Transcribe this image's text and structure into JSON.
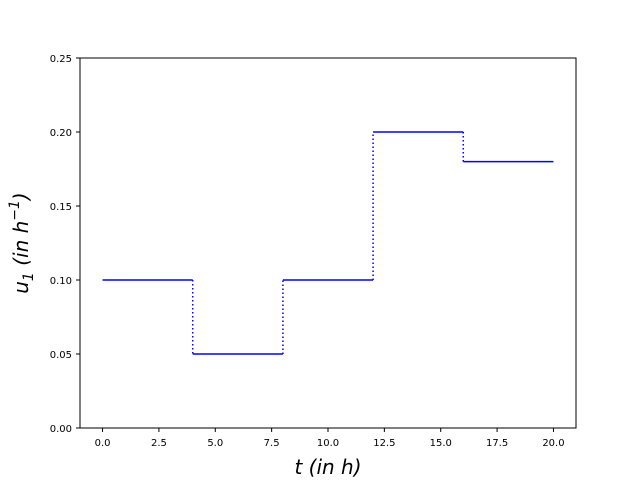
{
  "chart_data": {
    "type": "line",
    "style": "step",
    "xlabel": "t (in h)",
    "ylabel": {
      "base": "u",
      "subscript": "1",
      "text": " (in h",
      "superscript": "−1",
      "close": ")"
    },
    "xlim": [
      -1.0,
      21.0
    ],
    "ylim": [
      0.0,
      0.25
    ],
    "xticks": [
      0.0,
      2.5,
      5.0,
      7.5,
      10.0,
      12.5,
      15.0,
      17.5,
      20.0
    ],
    "xtick_labels": [
      "0.0",
      "2.5",
      "5.0",
      "7.5",
      "10.0",
      "12.5",
      "15.0",
      "17.5",
      "20.0"
    ],
    "yticks": [
      0.0,
      0.05,
      0.1,
      0.15,
      0.2,
      0.25
    ],
    "ytick_labels": [
      "0.00",
      "0.05",
      "0.10",
      "0.15",
      "0.20",
      "0.25"
    ],
    "grid": false,
    "series": [
      {
        "color": "#0000ff",
        "segments": [
          {
            "x_start": 0,
            "x_end": 4,
            "y": 0.1
          },
          {
            "x_start": 4,
            "x_end": 8,
            "y": 0.05
          },
          {
            "x_start": 8,
            "x_end": 12,
            "y": 0.1
          },
          {
            "x_start": 12,
            "x_end": 16,
            "y": 0.2
          },
          {
            "x_start": 16,
            "x_end": 20,
            "y": 0.18
          }
        ]
      }
    ]
  }
}
